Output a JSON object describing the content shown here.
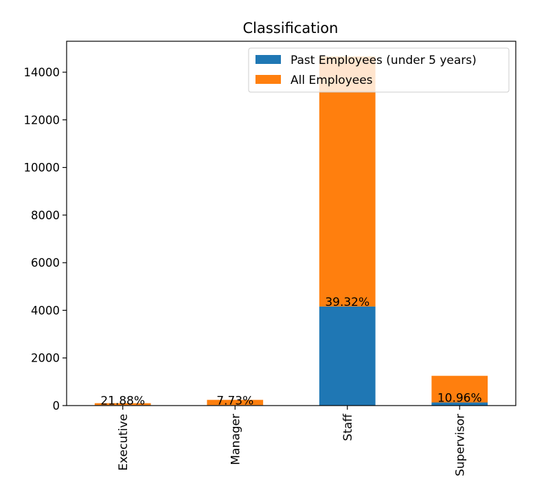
{
  "chart_data": {
    "type": "bar",
    "stacked": true,
    "title": "Classification",
    "xlabel": "",
    "ylabel": "",
    "categories": [
      "Executive",
      "Manager",
      "Staff",
      "Supervisor"
    ],
    "series": [
      {
        "name": "Past Employees (under 5 years)",
        "color": "#1f77b4",
        "values": [
          20,
          20,
          4160,
          130
        ]
      },
      {
        "name": "All Employees",
        "color": "#ff7f0e",
        "values": [
          80,
          220,
          10500,
          1120
        ]
      }
    ],
    "bar_labels": [
      "21.88%",
      "7.73%",
      "39.32%",
      "10.96%"
    ],
    "ylim": [
      0,
      15300
    ],
    "yticks": [
      0,
      2000,
      4000,
      6000,
      8000,
      10000,
      12000,
      14000
    ],
    "grid": false,
    "legend_position": "top-right"
  }
}
